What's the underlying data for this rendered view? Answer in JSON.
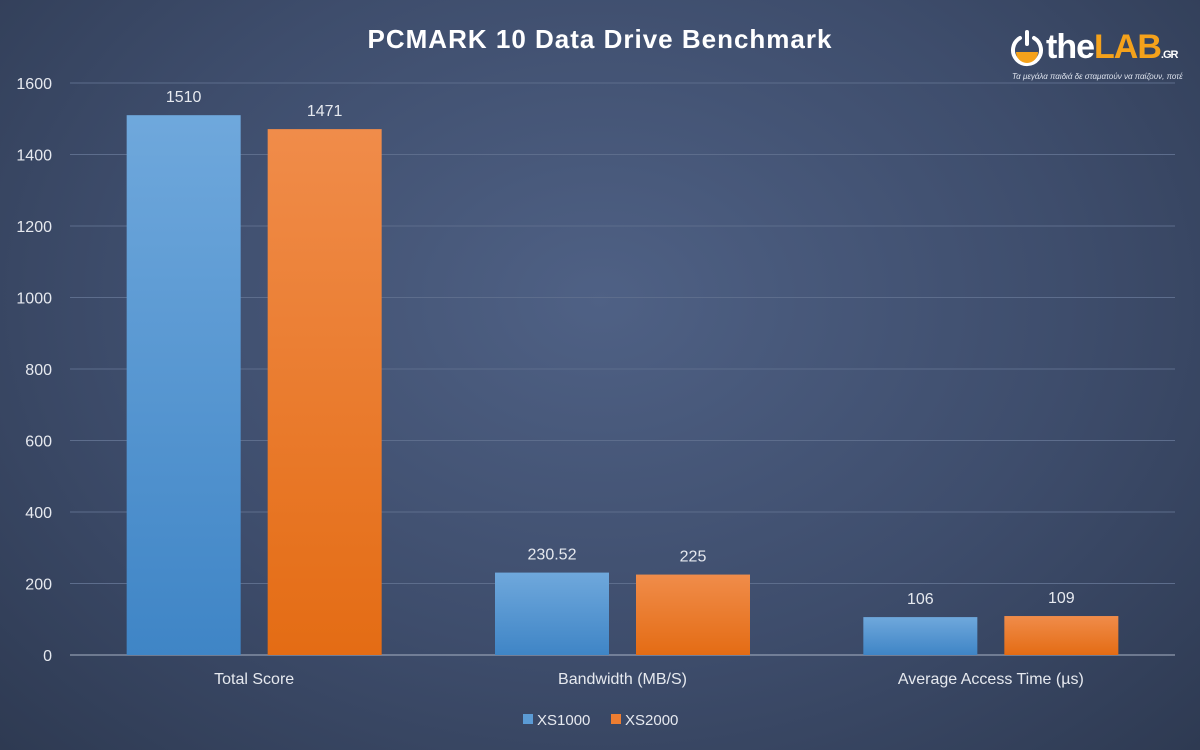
{
  "chart_data": {
    "type": "bar",
    "title": "PCMARK 10 Data Drive Benchmark",
    "categories": [
      "Total Score",
      "Bandwidth (MB/S)",
      "Average Access Time (µs)"
    ],
    "series": [
      {
        "name": "XS1000",
        "values": [
          1510,
          230.52,
          106
        ],
        "color": "#5b9bd5"
      },
      {
        "name": "XS2000",
        "values": [
          1471,
          225,
          109
        ],
        "color": "#ed7d31"
      }
    ],
    "data_labels": [
      [
        "1510",
        "230.52",
        "106"
      ],
      [
        "1471",
        "225",
        "109"
      ]
    ],
    "ylim": [
      0,
      1600
    ],
    "yticks": [
      0,
      200,
      400,
      600,
      800,
      1000,
      1200,
      1400,
      1600
    ],
    "grid": true,
    "legend": "bottom"
  },
  "logo": {
    "name_a": "the",
    "name_b": "LAB",
    "suffix": ".GR",
    "slogan": "Τα μεγάλα παιδιά δε σταματούν να παίζουν, ποτέ"
  }
}
